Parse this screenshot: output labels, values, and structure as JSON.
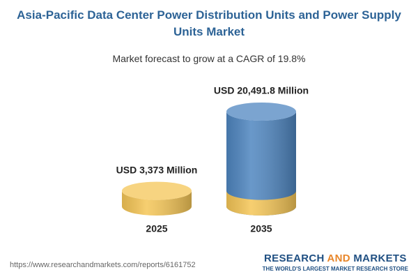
{
  "chart_data": {
    "type": "cylinder",
    "title": "Asia-Pacific Data Center Power Distribution Units and Power Supply Units Market",
    "subtitle": "Market forecast to grow at a CAGR of 19.8%",
    "categories": [
      "2025",
      "2035"
    ],
    "values": [
      3373,
      20491.8
    ],
    "value_labels": [
      "USD 3,373 Million",
      "USD 20,491.8 Million"
    ],
    "colors": [
      "#f5c657",
      "#4f86c0"
    ]
  },
  "footer": {
    "url": "https://www.researchandmarkets.com/reports/6161752",
    "logo": [
      "RESEARCH",
      "AND",
      "MARKETS"
    ],
    "tagline": "THE WORLD'S LARGEST MARKET RESEARCH STORE"
  }
}
